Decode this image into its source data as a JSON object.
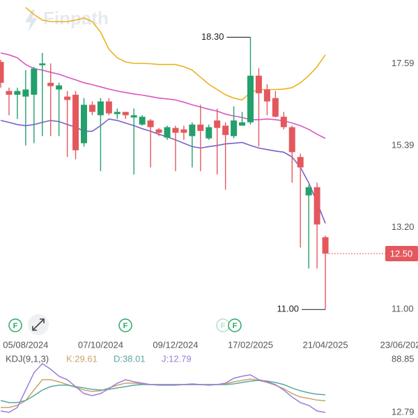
{
  "chart_data": [
    {
      "type": "candlestick",
      "watermark": "Finpath",
      "categories": [
        null,
        null,
        null,
        "05/08/2024",
        null,
        null,
        null,
        null,
        null,
        null,
        null,
        null,
        "07/10/2024",
        null,
        null,
        null,
        null,
        null,
        null,
        null,
        null,
        "09/12/2024",
        null,
        null,
        null,
        null,
        null,
        null,
        null,
        null,
        "17/02/2025",
        null,
        null,
        null,
        null,
        null,
        null,
        null,
        null,
        "21/04/2025",
        null,
        null,
        null,
        null,
        null,
        null,
        null,
        null,
        "23/06/202"
      ],
      "open": [
        17.64,
        16.86,
        16.76,
        16.71,
        16.76,
        17.55,
        17.08,
        16.9,
        16.71,
        16.76,
        15.46,
        16.49,
        16.21,
        16.58,
        16.24,
        16.3,
        16.15,
        15.96,
        16.07,
        15.83,
        15.61,
        15.87,
        15.83,
        15.65,
        15.96,
        15.59,
        16.07,
        15.93,
        15.65,
        15.93,
        16.02,
        17.27,
        16.9,
        16.67,
        16.17,
        15.89,
        15.09,
        14.06,
        14.28,
        12.94,
        null,
        null,
        null,
        null,
        null,
        null,
        null,
        null,
        null
      ],
      "high": [
        17.7,
        16.95,
        16.95,
        17.42,
        17.51,
        17.88,
        17.6,
        17.08,
        16.86,
        16.86,
        16.67,
        16.58,
        16.67,
        16.67,
        16.39,
        16.3,
        16.39,
        16.21,
        16.11,
        15.87,
        15.93,
        15.93,
        15.93,
        16.02,
        16.49,
        15.96,
        16.39,
        16.02,
        16.45,
        16.3,
        18.3,
        17.47,
        17.04,
        16.86,
        16.3,
        15.93,
        15.18,
        14.34,
        14.4,
        12.98,
        null,
        null,
        null,
        null,
        null,
        null,
        null,
        null,
        null
      ],
      "low": [
        16.95,
        16.21,
        16.11,
        15.4,
        15.46,
        15.65,
        15.65,
        15.65,
        15.09,
        15.03,
        15.37,
        16.21,
        14.71,
        16.21,
        16.11,
        16.11,
        14.62,
        15.93,
        14.81,
        15.65,
        15.55,
        14.71,
        15.55,
        14.81,
        14.71,
        15.55,
        14.62,
        14.21,
        15.59,
        15.93,
        15.96,
        15.37,
        16.21,
        16.15,
        15.83,
        14.4,
        12.66,
        12.1,
        12.1,
        11.0,
        null,
        null,
        null,
        null,
        null,
        null,
        null,
        null,
        null
      ],
      "close": [
        17.08,
        16.76,
        16.86,
        16.9,
        17.46,
        17.6,
        16.99,
        17.01,
        16.62,
        15.27,
        16.49,
        16.3,
        16.58,
        16.26,
        16.3,
        16.21,
        16.21,
        16.17,
        15.89,
        15.74,
        15.89,
        15.74,
        15.74,
        15.96,
        15.79,
        15.89,
        15.87,
        15.68,
        16.07,
        16.02,
        17.27,
        16.8,
        16.58,
        16.17,
        15.89,
        15.22,
        14.81,
        14.28,
        13.28,
        12.5,
        null,
        null,
        null,
        null,
        null,
        null,
        null,
        null,
        null
      ],
      "up_color": "#23a06b",
      "down_color": "#e4585d",
      "series": [
        {
          "color": "#e9b31c",
          "values": [
            null,
            null,
            null,
            19.1,
            18.91,
            18.76,
            18.72,
            18.72,
            18.72,
            18.76,
            18.82,
            18.72,
            18.44,
            17.98,
            17.75,
            17.64,
            17.6,
            17.6,
            17.59,
            17.57,
            17.57,
            17.57,
            17.51,
            17.42,
            17.23,
            17.04,
            16.9,
            16.76,
            16.67,
            16.62,
            16.82,
            16.9,
            16.9,
            16.9,
            16.91,
            16.95,
            17.08,
            17.27,
            17.51,
            17.83,
            null,
            null,
            null,
            null,
            null,
            null,
            null,
            null,
            null
          ]
        },
        {
          "color": "#d857c2",
          "values": [
            17.88,
            17.83,
            17.75,
            17.57,
            17.46,
            17.42,
            17.36,
            17.31,
            17.23,
            17.16,
            17.08,
            17.03,
            16.97,
            16.91,
            16.86,
            16.82,
            16.78,
            16.75,
            16.71,
            16.67,
            16.65,
            16.62,
            16.56,
            16.49,
            16.43,
            16.37,
            16.32,
            16.24,
            16.19,
            16.15,
            16.09,
            16.09,
            16.11,
            16.09,
            16.06,
            16.0,
            15.93,
            15.83,
            15.7,
            15.59,
            null,
            null,
            null,
            null,
            null,
            null,
            null,
            null,
            null
          ]
        },
        {
          "color": "#7a5fca",
          "values": [
            16.07,
            16.02,
            15.96,
            15.93,
            15.96,
            16.02,
            16.07,
            16.04,
            15.96,
            15.89,
            15.78,
            15.78,
            15.93,
            16.11,
            16.07,
            16.0,
            15.93,
            15.85,
            15.78,
            15.7,
            15.63,
            15.55,
            15.46,
            15.37,
            15.33,
            15.37,
            15.4,
            15.44,
            15.46,
            15.48,
            15.4,
            15.33,
            15.29,
            15.25,
            15.22,
            15.09,
            14.81,
            14.4,
            13.87,
            13.31,
            null,
            null,
            null,
            null,
            null,
            null,
            null,
            null,
            null
          ]
        }
      ],
      "ylim": [
        10.8,
        19.3
      ],
      "yticks": [
        {
          "value": 11,
          "label": "11.00"
        },
        {
          "value": 13.2,
          "label": "13.20"
        },
        15.39,
        17.59
      ],
      "annotations": [
        {
          "value": 18.3,
          "label": "18.30"
        },
        {
          "value": 11,
          "label": "11.00"
        }
      ],
      "last_price": {
        "value": 12.5,
        "label": "12.50"
      },
      "events": [
        "F",
        "F",
        "F",
        "F"
      ]
    },
    {
      "type": "line",
      "title": "KDJ(9,1,3)",
      "ylim": [
        4.8,
        99.9
      ],
      "yticks": [
        12.79,
        88.85
      ],
      "series": [
        {
          "name": "K:29.61",
          "color": "#c9a46a",
          "values": [
            19.9,
            19.9,
            22.9,
            29.9,
            44.9,
            59.9,
            59.9,
            56.9,
            52.9,
            48.9,
            44.9,
            42.9,
            43.9,
            47.9,
            51.9,
            54.9,
            54.9,
            53.9,
            52.9,
            52.9,
            52.9,
            52.9,
            52.9,
            52.9,
            52.9,
            52.9,
            52.9,
            53.9,
            56.9,
            58.9,
            60.9,
            58.9,
            55.9,
            51.9,
            46.9,
            39.9,
            34.9,
            32.9,
            30.5,
            29.61
          ]
        },
        {
          "name": "D:38.01",
          "color": "#5aa79f",
          "values": [
            29.9,
            26.9,
            26.9,
            29.9,
            36.9,
            44.9,
            49.9,
            51.9,
            51.9,
            49.9,
            47.9,
            45.9,
            44.9,
            45.9,
            47.9,
            49.9,
            51.9,
            52.9,
            52.9,
            52.9,
            52.9,
            52.9,
            52.9,
            52.9,
            52.9,
            52.9,
            52.9,
            52.9,
            53.9,
            55.9,
            57.9,
            58.9,
            57.9,
            55.9,
            52.9,
            47.9,
            43.9,
            40.9,
            38.9,
            38.01
          ]
        },
        {
          "name": "J:12.79",
          "color": "#9a7ed6",
          "values": [
            14.9,
            12.9,
            19.9,
            44.9,
            69.9,
            82.9,
            74.9,
            64.9,
            59.9,
            49.9,
            39.9,
            36.9,
            39.9,
            46.9,
            54.9,
            59.9,
            56.9,
            54.9,
            52.9,
            51.9,
            51.9,
            51.9,
            52.9,
            53.9,
            52.9,
            51.9,
            52.9,
            54.9,
            61.9,
            64.9,
            66.9,
            59.9,
            56.9,
            52.9,
            44.9,
            34.9,
            26.9,
            22.9,
            14.9,
            12.79
          ]
        }
      ]
    }
  ]
}
